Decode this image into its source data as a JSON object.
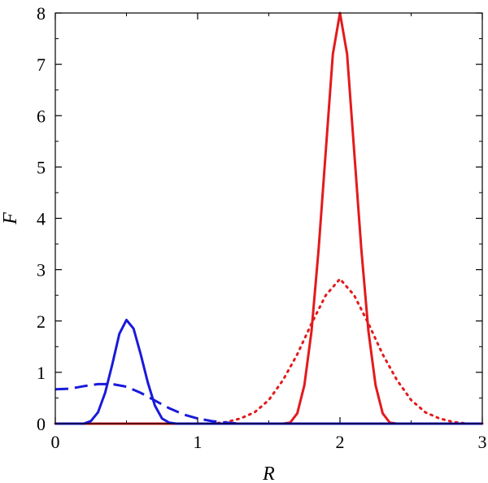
{
  "chart_data": {
    "type": "line",
    "title": "",
    "xlabel": "R",
    "ylabel": "F",
    "xlim": [
      0,
      3
    ],
    "ylim": [
      0,
      8
    ],
    "xticks": [
      0,
      1,
      2,
      3
    ],
    "yticks": [
      0,
      1,
      2,
      3,
      4,
      5,
      6,
      7,
      8
    ],
    "x_minor_step": 0.5,
    "y_minor_step": 0.5,
    "grid": false,
    "legend": "none",
    "series": [
      {
        "color": "#e31a1c",
        "style": "solid",
        "points": [
          [
            0,
            0
          ],
          [
            1.6,
            0
          ],
          [
            1.65,
            0.02
          ],
          [
            1.7,
            0.2
          ],
          [
            1.75,
            0.75
          ],
          [
            1.8,
            1.8
          ],
          [
            1.85,
            3.4
          ],
          [
            1.9,
            5.3
          ],
          [
            1.95,
            7.2
          ],
          [
            2.0,
            8.0
          ],
          [
            2.05,
            7.2
          ],
          [
            2.1,
            5.3
          ],
          [
            2.15,
            3.4
          ],
          [
            2.2,
            1.8
          ],
          [
            2.25,
            0.75
          ],
          [
            2.3,
            0.2
          ],
          [
            2.35,
            0.02
          ],
          [
            2.4,
            0
          ],
          [
            3,
            0
          ]
        ]
      },
      {
        "color": "#e31a1c",
        "style": "dotted",
        "points": [
          [
            0,
            0
          ],
          [
            1.1,
            0
          ],
          [
            1.2,
            0.03
          ],
          [
            1.3,
            0.1
          ],
          [
            1.4,
            0.22
          ],
          [
            1.5,
            0.46
          ],
          [
            1.6,
            0.85
          ],
          [
            1.7,
            1.35
          ],
          [
            1.8,
            1.95
          ],
          [
            1.9,
            2.5
          ],
          [
            2.0,
            2.82
          ],
          [
            2.1,
            2.5
          ],
          [
            2.2,
            1.95
          ],
          [
            2.3,
            1.35
          ],
          [
            2.4,
            0.85
          ],
          [
            2.5,
            0.46
          ],
          [
            2.6,
            0.22
          ],
          [
            2.7,
            0.1
          ],
          [
            2.8,
            0.03
          ],
          [
            2.9,
            0
          ],
          [
            3,
            0
          ]
        ]
      },
      {
        "color": "#1a1adb",
        "style": "solid",
        "points": [
          [
            0,
            0
          ],
          [
            0.2,
            0
          ],
          [
            0.25,
            0.05
          ],
          [
            0.3,
            0.22
          ],
          [
            0.35,
            0.6
          ],
          [
            0.4,
            1.15
          ],
          [
            0.45,
            1.75
          ],
          [
            0.5,
            2.02
          ],
          [
            0.55,
            1.85
          ],
          [
            0.6,
            1.35
          ],
          [
            0.65,
            0.8
          ],
          [
            0.7,
            0.35
          ],
          [
            0.75,
            0.1
          ],
          [
            0.8,
            0.02
          ],
          [
            0.85,
            0
          ],
          [
            3,
            0
          ]
        ]
      },
      {
        "color": "#1a1adb",
        "style": "dashed",
        "points": [
          [
            0,
            0.67
          ],
          [
            0.1,
            0.68
          ],
          [
            0.2,
            0.73
          ],
          [
            0.3,
            0.77
          ],
          [
            0.4,
            0.77
          ],
          [
            0.5,
            0.72
          ],
          [
            0.6,
            0.6
          ],
          [
            0.7,
            0.45
          ],
          [
            0.8,
            0.3
          ],
          [
            0.9,
            0.18
          ],
          [
            1.0,
            0.1
          ],
          [
            1.1,
            0.05
          ],
          [
            1.2,
            0.02
          ],
          [
            1.3,
            0
          ],
          [
            3,
            0
          ]
        ]
      }
    ]
  }
}
